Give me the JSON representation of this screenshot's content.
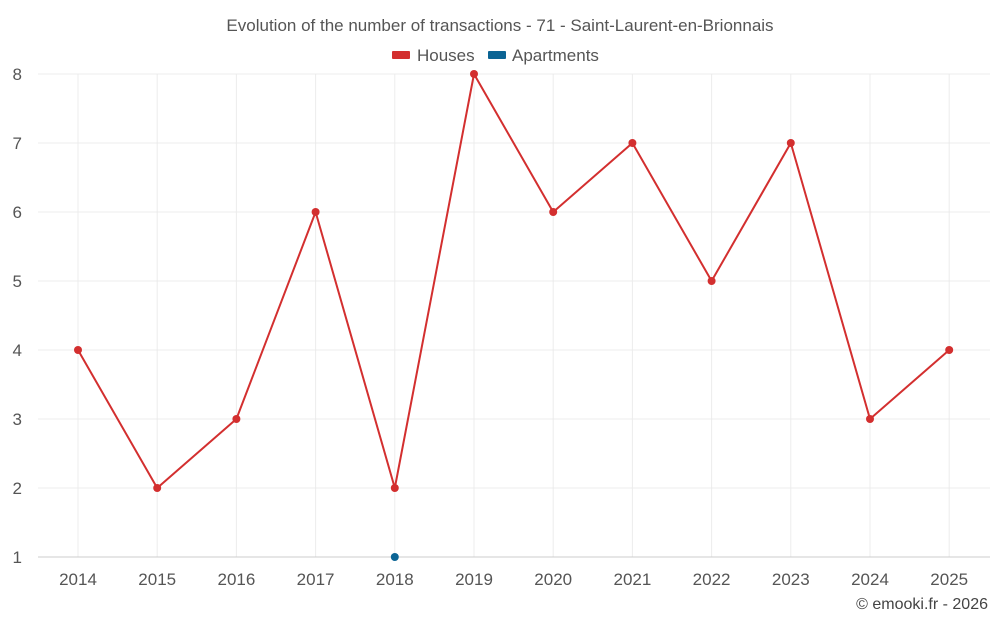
{
  "chart_data": {
    "type": "line",
    "title": "Evolution of the number of transactions - 71 - Saint-Laurent-en-Brionnais",
    "x": [
      "2014",
      "2015",
      "2016",
      "2017",
      "2018",
      "2019",
      "2020",
      "2021",
      "2022",
      "2023",
      "2024",
      "2025"
    ],
    "ylim": [
      1,
      8
    ],
    "yticks": [
      "1",
      "2",
      "3",
      "4",
      "5",
      "6",
      "7",
      "8"
    ],
    "grid": true,
    "legend_position": "top-center",
    "series": [
      {
        "name": "Houses",
        "color": "#d32f2f",
        "values": [
          4,
          2,
          3,
          6,
          2,
          8,
          6,
          7,
          5,
          7,
          3,
          4
        ]
      },
      {
        "name": "Apartments",
        "color": "#0b6494",
        "values": [
          null,
          null,
          null,
          null,
          1,
          null,
          null,
          null,
          null,
          null,
          null,
          null
        ]
      }
    ]
  },
  "credit": "© emooki.fr - 2026"
}
